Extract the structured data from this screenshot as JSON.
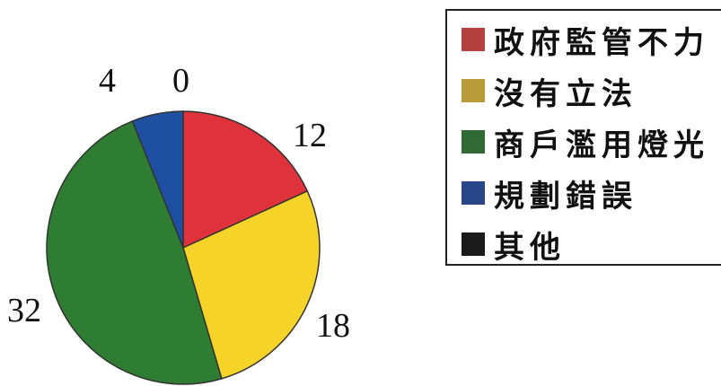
{
  "chart_data": {
    "type": "pie",
    "slices": [
      {
        "label": "政府監管不力",
        "value": 12,
        "color": "#e0323b"
      },
      {
        "label": "沒有立法",
        "value": 18,
        "color": "#f5d328"
      },
      {
        "label": "商戶濫用燈光",
        "value": 32,
        "color": "#2f7d32"
      },
      {
        "label": "規劃錯誤",
        "value": 4,
        "color": "#1f4fa0"
      },
      {
        "label": "其他",
        "value": 0,
        "color": "#1a1a1a"
      }
    ],
    "value_labels": [
      "12",
      "18",
      "32",
      "4",
      "0"
    ],
    "legend_placement": "right"
  },
  "legend": {
    "items": [
      {
        "label": "政府監管不力",
        "swatch": "#b5413f"
      },
      {
        "label": "沒有立法",
        "swatch": "#b89c3a"
      },
      {
        "label": "商戶濫用燈光",
        "swatch": "#2f6a35"
      },
      {
        "label": "規劃錯誤",
        "swatch": "#28468a"
      },
      {
        "label": "其他",
        "swatch": "#1a1a1a"
      }
    ]
  }
}
